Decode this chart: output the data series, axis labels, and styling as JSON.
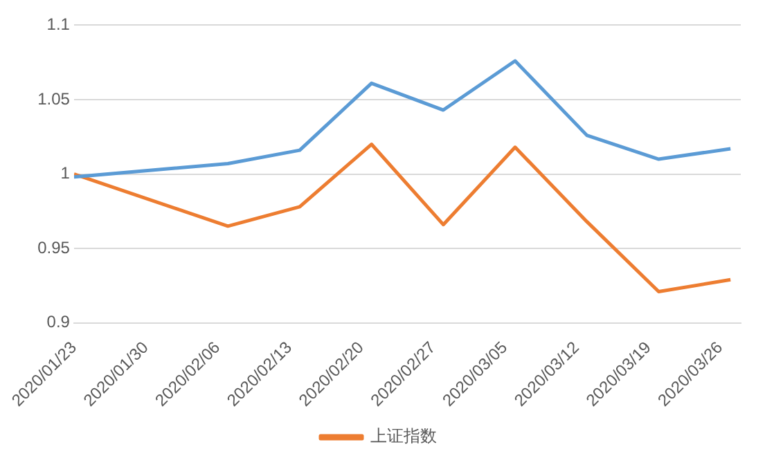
{
  "chart_data": {
    "type": "line",
    "x": [
      "2020-01-23",
      "2020-02-07",
      "2020-02-14",
      "2020-02-21",
      "2020-02-28",
      "2020-03-06",
      "2020-03-13",
      "2020-03-20",
      "2020-03-27"
    ],
    "series": [
      {
        "color": "#5b9bd5",
        "values": [
          0.998,
          1.007,
          1.016,
          1.061,
          1.043,
          1.076,
          1.026,
          1.01,
          1.017
        ]
      },
      {
        "name": "上证指数",
        "color": "#ed7d31",
        "values": [
          1.0,
          0.965,
          0.978,
          1.02,
          0.966,
          1.018,
          0.968,
          0.921,
          0.929
        ]
      }
    ],
    "xlim": [
      "2020-01-23",
      "2020-03-28"
    ],
    "xticks": [
      {
        "value": "2020-01-23",
        "label": "2020/01/23"
      },
      {
        "value": "2020-01-30",
        "label": "2020/01/30"
      },
      {
        "value": "2020-02-06",
        "label": "2020/02/06"
      },
      {
        "value": "2020-02-13",
        "label": "2020/02/13"
      },
      {
        "value": "2020-02-20",
        "label": "2020/02/20"
      },
      {
        "value": "2020-02-27",
        "label": "2020/02/27"
      },
      {
        "value": "2020-03-05",
        "label": "2020/03/05"
      },
      {
        "value": "2020-03-12",
        "label": "2020/03/12"
      },
      {
        "value": "2020-03-19",
        "label": "2020/03/19"
      },
      {
        "value": "2020-03-26",
        "label": "2020/03/26"
      }
    ],
    "ylim": [
      0.9,
      1.1
    ],
    "yticks": [
      0.9,
      0.95,
      1,
      1.05,
      1.1
    ],
    "grid": "y",
    "legend": "bottom",
    "marker": "none",
    "line_style": "solid"
  }
}
